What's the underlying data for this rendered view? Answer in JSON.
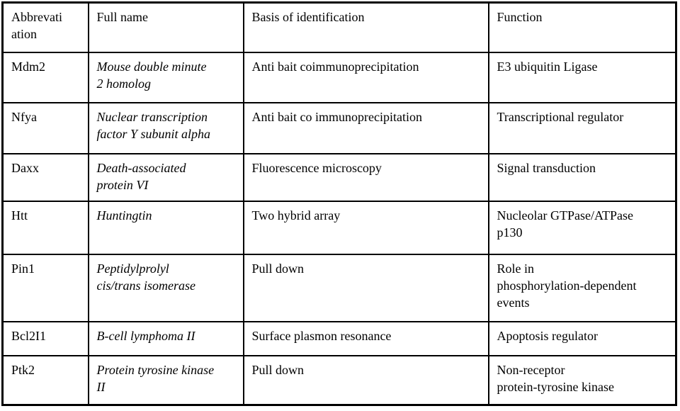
{
  "colors": {
    "border": "#000000",
    "text": "#000000",
    "background": "#ffffff"
  },
  "chart_data": {
    "type": "table",
    "columns": [
      "Abbrevati\nation",
      "Full name",
      "Basis of identification",
      "Function"
    ],
    "rows": [
      [
        "Mdm2",
        "Mouse double minute\n2 homolog",
        "Anti bait coimmunoprecipitation",
        "E3 ubiquitin Ligase"
      ],
      [
        "Nfya",
        "Nuclear transcription\nfactor Y subunit alpha",
        "Anti bait co immunoprecipitation",
        "Transcriptional regulator"
      ],
      [
        "Daxx",
        "Death-associated\nprotein VI",
        "Fluorescence microscopy",
        "Signal transduction"
      ],
      [
        "Htt",
        "Huntingtin",
        "Two hybrid array",
        "Nucleolar GTPase/ATPase\np130"
      ],
      [
        "Pin1",
        "Peptidylprolyl\ncis/trans isomerase",
        "Pull down",
        "Role in\nphosphorylation-dependent\nevents"
      ],
      [
        "Bcl2I1",
        "B-cell lymphoma II",
        "Surface plasmon resonance",
        "Apoptosis regulator"
      ],
      [
        "Ptk2",
        "Protein tyrosine kinase\nII",
        "Pull down",
        "Non-receptor\nprotein-tyrosine kinase"
      ]
    ]
  }
}
